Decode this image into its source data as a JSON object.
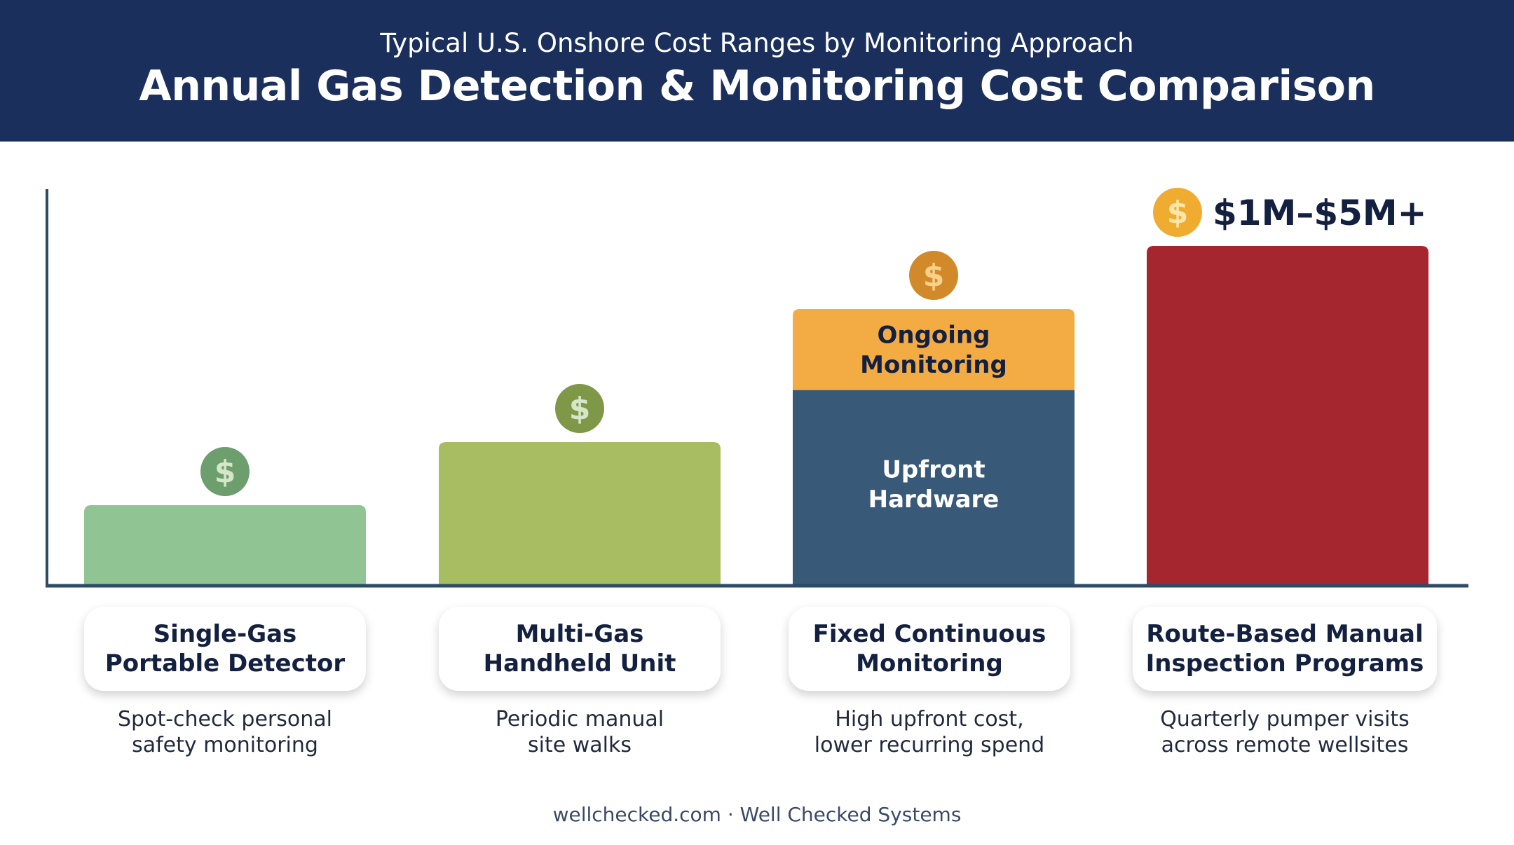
{
  "header": {
    "subtitle": "Typical U.S. Onshore Cost Ranges by Monitoring Approach",
    "title": "Annual Gas Detection & Monitoring Cost Comparison"
  },
  "chart_data": {
    "type": "bar",
    "categories": [
      "Single-Gas\nPortable Detector",
      "Multi-Gas\nHandheld Unit",
      "Fixed Continuous\nMonitoring",
      "Route-Based Manual\nInspection Programs"
    ],
    "descriptions": [
      "Spot-check personal\nsafety monitoring",
      "Periodic manual\nsite walks",
      "High upfront cost,\nlower recurring spend",
      "Quarterly pumper visits\nacross remote wellsites"
    ],
    "relative_values": [
      0.23,
      0.41,
      0.79,
      0.97
    ],
    "stack_on_bar_3": [
      {
        "label": "Upfront\nHardware",
        "fraction_of_total": 0.707,
        "color": "#385a78"
      },
      {
        "label": "Ongoing\nMonitoring",
        "fraction_of_total": 0.293,
        "color": "#f3ac44"
      }
    ],
    "bar_colors": [
      "#90c593",
      "#a8bd62",
      "#385a78",
      "#a5262f"
    ],
    "coin_colors": [
      "#6d9e6e",
      "#7f9848",
      "#d2892a",
      "#f0ac30"
    ],
    "value_label_last": "$1M–$5M+",
    "coin_symbol": "$",
    "axis_color": "#2d4a66",
    "grid": false,
    "legend": "none"
  },
  "footer": {
    "text": "wellchecked.com · Well Checked Systems"
  }
}
